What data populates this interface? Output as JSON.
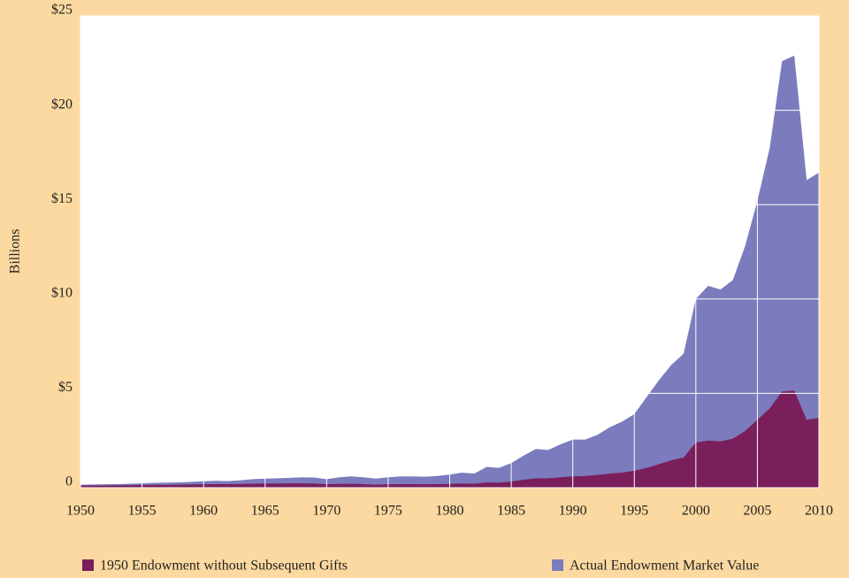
{
  "chart_data": {
    "type": "area",
    "ylabel": "Billions",
    "x": [
      1950,
      1951,
      1952,
      1953,
      1954,
      1955,
      1956,
      1957,
      1958,
      1959,
      1960,
      1961,
      1962,
      1963,
      1964,
      1965,
      1966,
      1967,
      1968,
      1969,
      1970,
      1971,
      1972,
      1973,
      1974,
      1975,
      1976,
      1977,
      1978,
      1979,
      1980,
      1981,
      1982,
      1983,
      1984,
      1985,
      1986,
      1987,
      1988,
      1989,
      1990,
      1991,
      1992,
      1993,
      1994,
      1995,
      1996,
      1997,
      1998,
      1999,
      2000,
      2001,
      2002,
      2003,
      2004,
      2005,
      2006,
      2007,
      2008,
      2009,
      2010
    ],
    "series": [
      {
        "name": "1950 Endowment without Subsequent Gifts",
        "color": "#7a1f5c",
        "values": [
          0.12,
          0.12,
          0.12,
          0.13,
          0.13,
          0.14,
          0.15,
          0.15,
          0.16,
          0.17,
          0.18,
          0.19,
          0.19,
          0.2,
          0.21,
          0.22,
          0.22,
          0.23,
          0.23,
          0.22,
          0.18,
          0.2,
          0.21,
          0.19,
          0.16,
          0.18,
          0.19,
          0.19,
          0.18,
          0.19,
          0.2,
          0.22,
          0.21,
          0.28,
          0.27,
          0.33,
          0.42,
          0.5,
          0.5,
          0.55,
          0.6,
          0.62,
          0.68,
          0.75,
          0.8,
          0.9,
          1.05,
          1.25,
          1.45,
          1.6,
          2.4,
          2.5,
          2.45,
          2.6,
          3.0,
          3.6,
          4.2,
          5.1,
          5.15,
          3.6,
          3.7
        ]
      },
      {
        "name": "Actual Endowment Market Value",
        "color": "#7b7bbd",
        "values": [
          0.16,
          0.17,
          0.18,
          0.19,
          0.21,
          0.23,
          0.26,
          0.27,
          0.28,
          0.31,
          0.34,
          0.37,
          0.35,
          0.39,
          0.45,
          0.48,
          0.5,
          0.52,
          0.55,
          0.54,
          0.45,
          0.55,
          0.6,
          0.55,
          0.48,
          0.55,
          0.6,
          0.6,
          0.58,
          0.62,
          0.7,
          0.8,
          0.75,
          1.1,
          1.05,
          1.3,
          1.7,
          2.05,
          2.0,
          2.3,
          2.55,
          2.55,
          2.8,
          3.2,
          3.5,
          3.9,
          4.8,
          5.7,
          6.5,
          7.1,
          10.0,
          10.7,
          10.5,
          11.0,
          12.8,
          15.2,
          18.0,
          22.6,
          22.9,
          16.3,
          16.7
        ]
      }
    ],
    "xlim": [
      1950,
      2010
    ],
    "xticks": [
      1950,
      1955,
      1960,
      1965,
      1970,
      1975,
      1980,
      1985,
      1990,
      1995,
      2000,
      2005,
      2010
    ],
    "ylim": [
      0,
      25
    ],
    "yticks": [
      0,
      {
        "value": 5,
        "label": "$5"
      },
      {
        "value": 10,
        "label": "$10"
      },
      {
        "value": 15,
        "label": "$15"
      },
      {
        "value": 20,
        "label": "$20"
      },
      {
        "value": 25,
        "label": "$25"
      }
    ],
    "grid": true,
    "legend": "bottom"
  }
}
